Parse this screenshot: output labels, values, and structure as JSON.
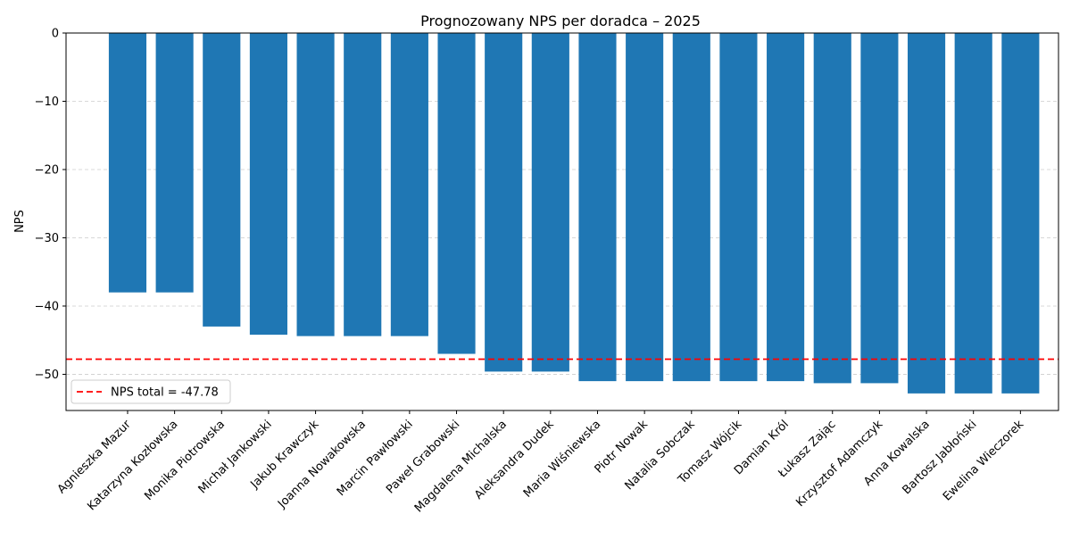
{
  "chart_data": {
    "type": "bar",
    "title": "Prognozowany NPS per doradca – 2025",
    "xlabel": "",
    "ylabel": "NPS",
    "ylim": [
      -55.3,
      0
    ],
    "yticks": [
      0,
      -10,
      -20,
      -30,
      -40,
      -50
    ],
    "ytick_labels": [
      "0",
      "−10",
      "−20",
      "−30",
      "−40",
      "−50"
    ],
    "grid": {
      "y": true,
      "x": false,
      "style": "dashed"
    },
    "bar_color": "#1f77b4",
    "categories": [
      "Agnieszka Mazur",
      "Katarzyna Kozłowska",
      "Monika Piotrowska",
      "Michał Jankowski",
      "Jakub Krawczyk",
      "Joanna Nowakowska",
      "Marcin Pawłowski",
      "Paweł Grabowski",
      "Magdalena Michalska",
      "Aleksandra Dudek",
      "Maria Wiśniewska",
      "Piotr Nowak",
      "Natalia Sobczak",
      "Tomasz Wójcik",
      "Damian Król",
      "Łukasz Zając",
      "Krzysztof Adamczyk",
      "Anna Kowalska",
      "Bartosz Jabłoński",
      "Ewelina Wieczorek"
    ],
    "values": [
      -38.0,
      -38.0,
      -43.0,
      -44.2,
      -44.4,
      -44.4,
      -44.4,
      -47.0,
      -49.6,
      -49.6,
      -51.0,
      -51.0,
      -51.0,
      -51.0,
      -51.0,
      -51.3,
      -51.3,
      -52.8,
      -52.8,
      -52.8
    ],
    "reference_line": {
      "value": -47.78,
      "color": "#ff0000",
      "style": "dashed"
    },
    "legend": {
      "position": "lower-left",
      "entries": [
        "NPS total = -47.78"
      ]
    }
  }
}
